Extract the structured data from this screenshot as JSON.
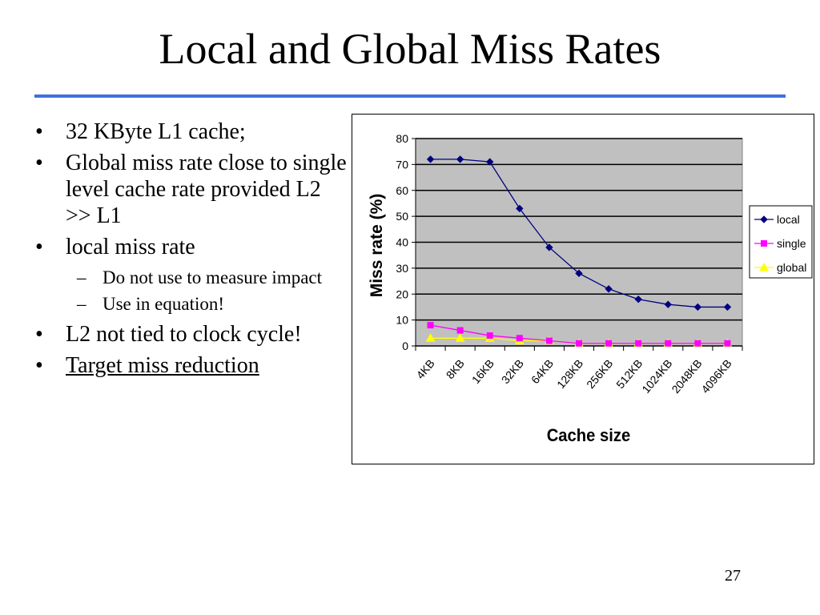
{
  "slide": {
    "title": "Local and Global Miss Rates",
    "page_number": "27",
    "rule_color": "#3f6fe0"
  },
  "bullets": [
    {
      "text": "32 KByte L1 cache;"
    },
    {
      "text": "Global miss rate close to single level cache rate provided L2 >> L1"
    },
    {
      "text": "local miss rate",
      "sub": [
        "Do not use to measure impact",
        "Use in equation!"
      ]
    },
    {
      "text": "L2 not tied to clock cycle!"
    },
    {
      "text": "Target miss reduction",
      "underlined": true
    }
  ],
  "chart_data": {
    "type": "line",
    "xlabel": "Cache size",
    "ylabel": "Miss rate (%)",
    "ylim": [
      0,
      80
    ],
    "yticks": [
      0,
      10,
      20,
      30,
      40,
      50,
      60,
      70,
      80
    ],
    "grid": true,
    "plot_background": "#c0c0c0",
    "legend_position": "right",
    "categories": [
      "4KB",
      "8KB",
      "16KB",
      "32KB",
      "64KB",
      "128KB",
      "256KB",
      "512KB",
      "1024KB",
      "2048KB",
      "4096KB"
    ],
    "series": [
      {
        "name": "local",
        "color": "#000080",
        "marker": "diamond",
        "values": [
          72,
          72,
          71,
          53,
          38,
          28,
          22,
          18,
          16,
          15,
          15
        ]
      },
      {
        "name": "single",
        "color": "#ff00ff",
        "marker": "square",
        "values": [
          8,
          6,
          4,
          3,
          2,
          1,
          1,
          1,
          1,
          1,
          1
        ]
      },
      {
        "name": "global",
        "color": "#ffff00",
        "marker": "triangle",
        "values": [
          3,
          3,
          3,
          2,
          2,
          1,
          1,
          1,
          1,
          1,
          1
        ]
      }
    ]
  }
}
